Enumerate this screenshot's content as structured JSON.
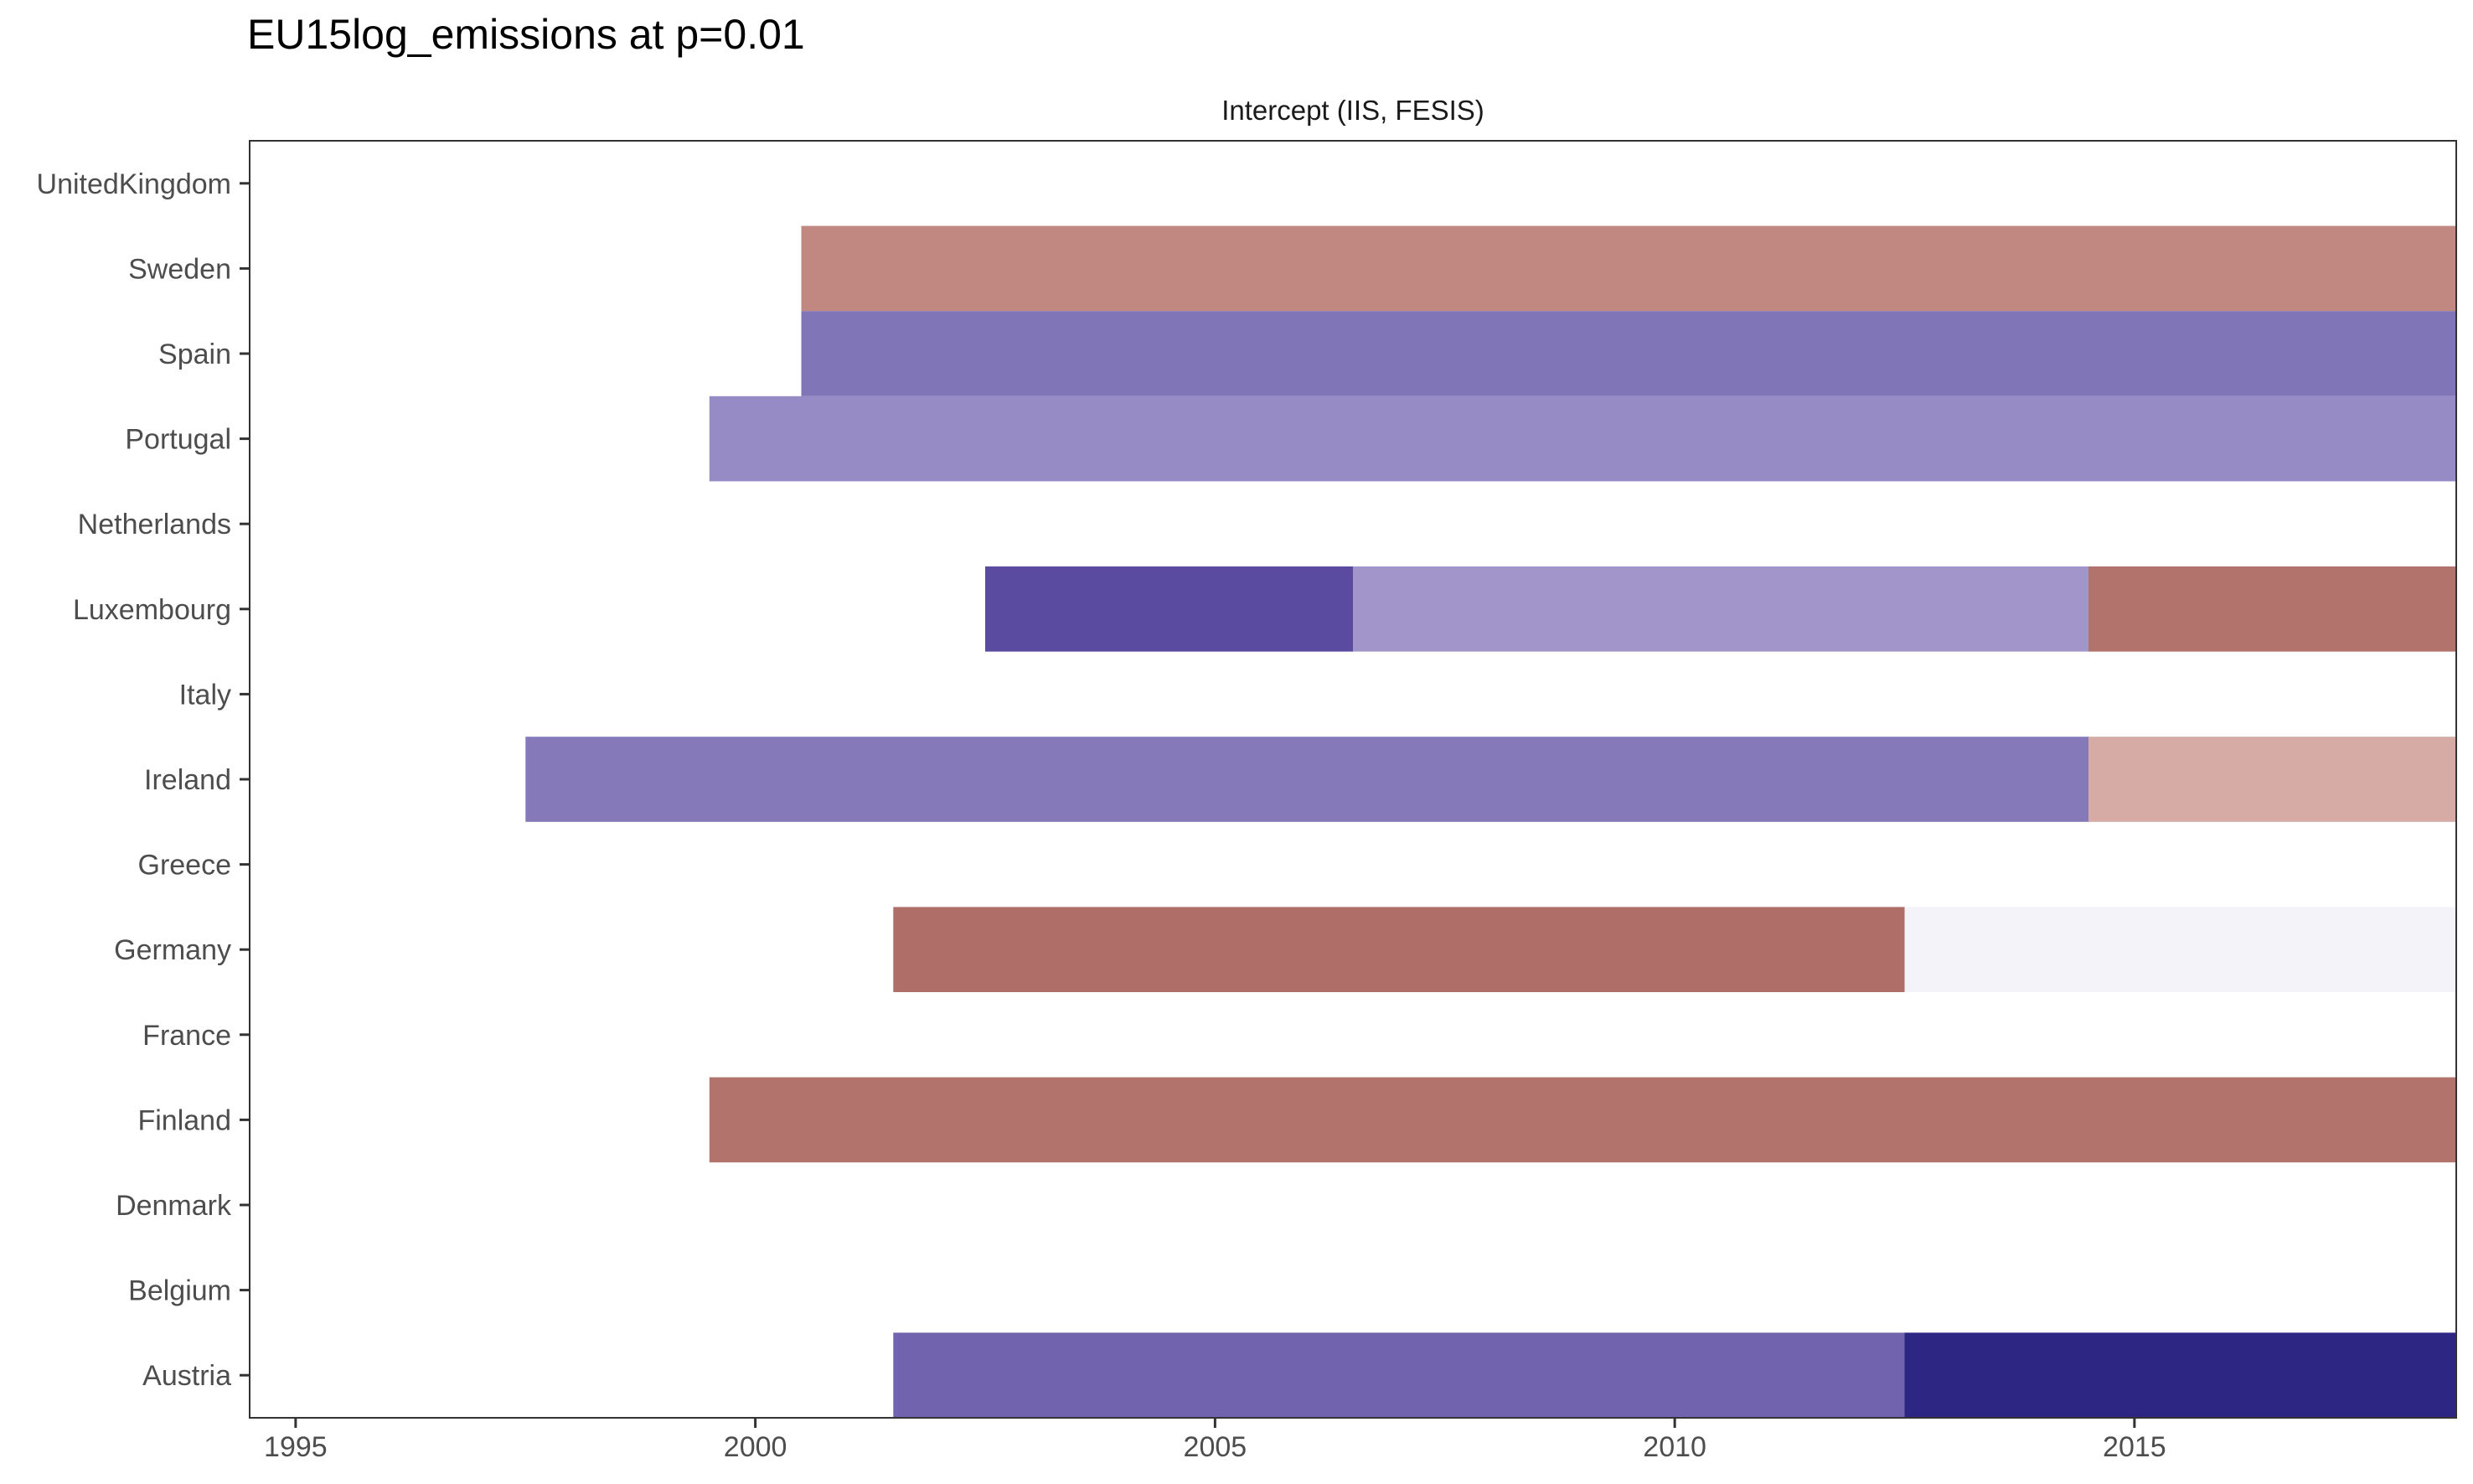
{
  "chart_data": {
    "type": "bar",
    "title": "EU15log_emissions at p=0.01",
    "facet_label": "Intercept (IIS, FESIS)",
    "xlabel": "",
    "ylabel": "",
    "xlim": [
      1994.5,
      2018.5
    ],
    "x_ticks": [
      1995,
      2000,
      2005,
      2010,
      2015
    ],
    "categories": [
      "UnitedKingdom",
      "Sweden",
      "Spain",
      "Portugal",
      "Netherlands",
      "Luxembourg",
      "Italy",
      "Ireland",
      "Greece",
      "Germany",
      "France",
      "Finland",
      "Denmark",
      "Belgium",
      "Austria"
    ],
    "grid": false,
    "legend": "none",
    "segments": [
      {
        "country": "Sweden",
        "start": 2000.5,
        "end": 2018.5,
        "color": "#c18781"
      },
      {
        "country": "Spain",
        "start": 2000.5,
        "end": 2018.5,
        "color": "#8075b7"
      },
      {
        "country": "Portugal",
        "start": 1999.5,
        "end": 2018.5,
        "color": "#968bc5"
      },
      {
        "country": "Luxembourg",
        "start": 2002.5,
        "end": 2006.5,
        "color": "#5a4ba1"
      },
      {
        "country": "Luxembourg",
        "start": 2006.5,
        "end": 2014.5,
        "color": "#a295ca"
      },
      {
        "country": "Luxembourg",
        "start": 2014.5,
        "end": 2018.5,
        "color": "#b1736c"
      },
      {
        "country": "Ireland",
        "start": 1997.5,
        "end": 2014.5,
        "color": "#8679ba"
      },
      {
        "country": "Ireland",
        "start": 2014.5,
        "end": 2018.5,
        "color": "#d6aba5"
      },
      {
        "country": "Germany",
        "start": 2001.5,
        "end": 2012.5,
        "color": "#b06e69"
      },
      {
        "country": "Germany",
        "start": 2012.5,
        "end": 2018.5,
        "color": "#f4f3f9"
      },
      {
        "country": "Finland",
        "start": 1999.5,
        "end": 2018.5,
        "color": "#b2736d"
      },
      {
        "country": "Austria",
        "start": 2001.5,
        "end": 2012.5,
        "color": "#7163ad"
      },
      {
        "country": "Austria",
        "start": 2012.5,
        "end": 2018.5,
        "color": "#2e2683"
      }
    ]
  }
}
